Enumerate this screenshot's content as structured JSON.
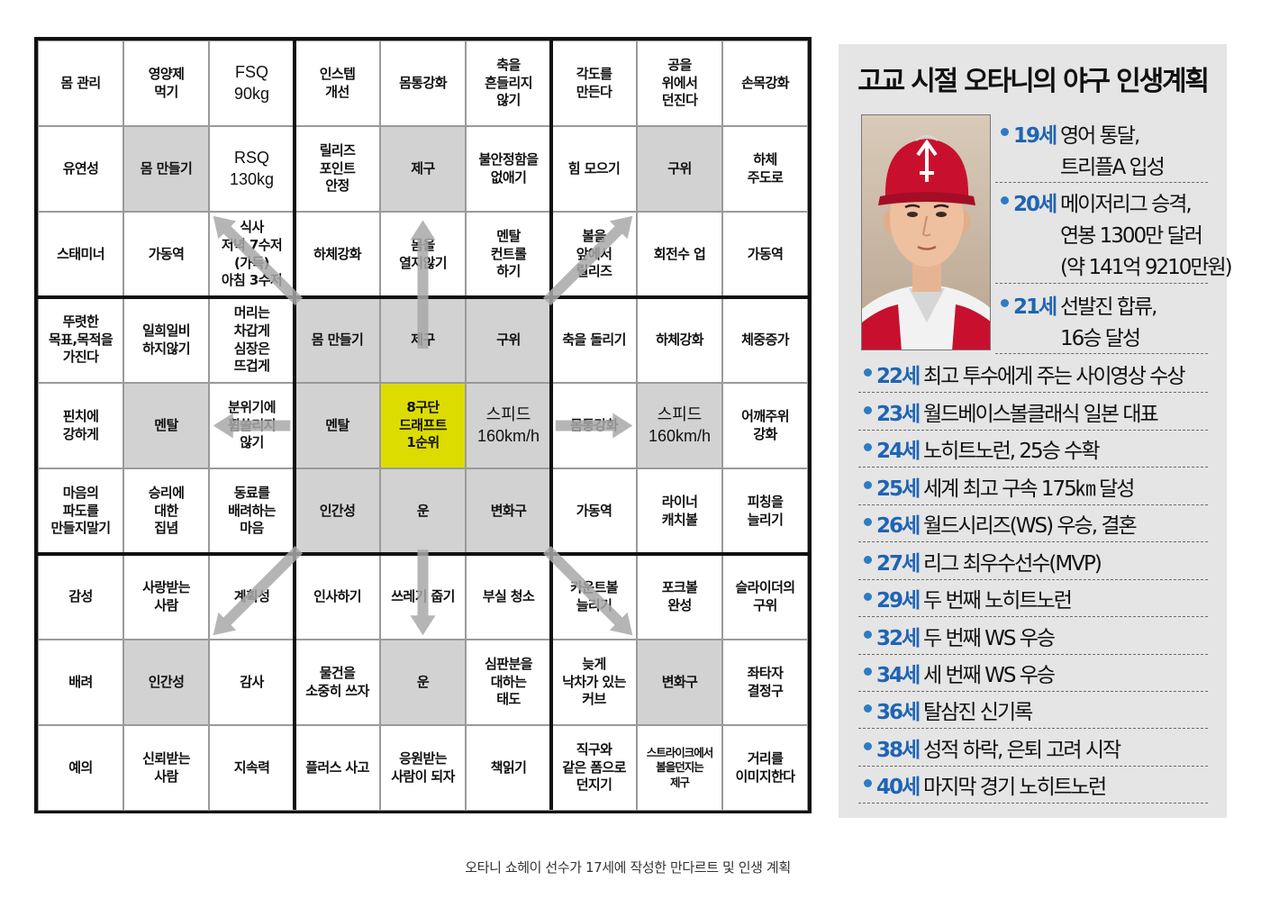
{
  "mandalart": {
    "cells": [
      [
        "몸 관리",
        "영양제\n먹기",
        "FSQ\n90kg",
        "인스텝\n개선",
        "몸통강화",
        "축을\n흔들리지\n않기",
        "각도를\n만든다",
        "공을\n위에서\n던진다",
        "손목강화"
      ],
      [
        "유연성",
        "몸 만들기",
        "RSQ\n130kg",
        "릴리즈\n포인트\n안정",
        "제구",
        "불안정함을\n없애기",
        "힘 모으기",
        "구위",
        "하체\n주도로"
      ],
      [
        "스태미너",
        "가동역",
        "식사\n저녁 7수저\n(가득)\n아침 3수저",
        "하체강화",
        "몸을\n열지않기",
        "멘탈\n컨트롤\n하기",
        "볼을\n앞에서\n릴리즈",
        "회전수 업",
        "가동역"
      ],
      [
        "뚜렷한\n목표,목적을\n가진다",
        "일희일비\n하지않기",
        "머리는\n차갑게\n심장은\n뜨겁게",
        "몸 만들기",
        "제구",
        "구위",
        "축을 돌리기",
        "하체강화",
        "체중증가"
      ],
      [
        "핀치에\n강하게",
        "멘탈",
        "분위기에\n휩쓸리지\n않기",
        "멘탈",
        "8구단\n드래프트\n1순위",
        "스피드\n160km/h",
        "몸통강화",
        "스피드\n160km/h",
        "어깨주위\n강화"
      ],
      [
        "마음의\n파도를\n만들지말기",
        "승리에\n대한\n집념",
        "동료를\n배려하는\n마음",
        "인간성",
        "운",
        "변화구",
        "가동역",
        "라이너\n캐치볼",
        "피칭을\n늘리기"
      ],
      [
        "감성",
        "사랑받는\n사람",
        "계획성",
        "인사하기",
        "쓰레기 줍기",
        "부실 청소",
        "카운트볼\n늘리기",
        "포크볼\n완성",
        "슬라이더의\n구위"
      ],
      [
        "배려",
        "인간성",
        "감사",
        "물건을\n소중히 쓰자",
        "운",
        "심판분을\n대하는\n태도",
        "늦게\n낙차가 있는\n커브",
        "변화구",
        "좌타자\n결정구"
      ],
      [
        "예의",
        "신뢰받는\n사람",
        "지속력",
        "플러스 사고",
        "응원받는\n사람이 되자",
        "책읽기",
        "직구와\n같은 폼으로\n던지기",
        "스트라이크에서\n볼을던지는\n제구",
        "거리를\n이미지한다"
      ]
    ]
  },
  "plan": {
    "title": "고교 시절 오타니의 야구 인생계획",
    "photo": {
      "description": "빨간 모자를 쓴 선수 사진"
    },
    "items": [
      {
        "age": "19세",
        "lines": [
          "영어 통달,",
          "트리플A 입성"
        ]
      },
      {
        "age": "20세",
        "lines": [
          "메이저리그 승격,",
          "연봉 1300만 달러",
          "(약 141억 9210만원)"
        ]
      },
      {
        "age": "21세",
        "lines": [
          "선발진 합류,",
          "16승 달성"
        ]
      },
      {
        "age": "22세",
        "lines": [
          "최고 투수에게 주는 사이영상 수상"
        ]
      },
      {
        "age": "23세",
        "lines": [
          "월드베이스볼클래식 일본 대표"
        ]
      },
      {
        "age": "24세",
        "lines": [
          "노히트노런, 25승 수확"
        ]
      },
      {
        "age": "25세",
        "lines": [
          "세계 최고 구속 175㎞ 달성"
        ]
      },
      {
        "age": "26세",
        "lines": [
          "월드시리즈(WS) 우승, 결혼"
        ]
      },
      {
        "age": "27세",
        "lines": [
          "리그 최우수선수(MVP)"
        ]
      },
      {
        "age": "29세",
        "lines": [
          "두 번째 노히트노런"
        ]
      },
      {
        "age": "32세",
        "lines": [
          "두 번째 WS 우승"
        ]
      },
      {
        "age": "34세",
        "lines": [
          "세 번째 WS 우승"
        ]
      },
      {
        "age": "36세",
        "lines": [
          "탈삼진 신기록"
        ]
      },
      {
        "age": "38세",
        "lines": [
          "성적 하락, 은퇴 고려 시작"
        ]
      },
      {
        "age": "40세",
        "lines": [
          "마지막 경기 노히트노런"
        ]
      }
    ]
  },
  "caption": "오타니 쇼헤이 선수가 17세에 작성한 만다르트 및 인생 계획",
  "colors": {
    "accent": "#1f64b4",
    "center": "#dcdc00",
    "goal_cell": "#d2d2d2",
    "panel": "#e5e5e5"
  }
}
